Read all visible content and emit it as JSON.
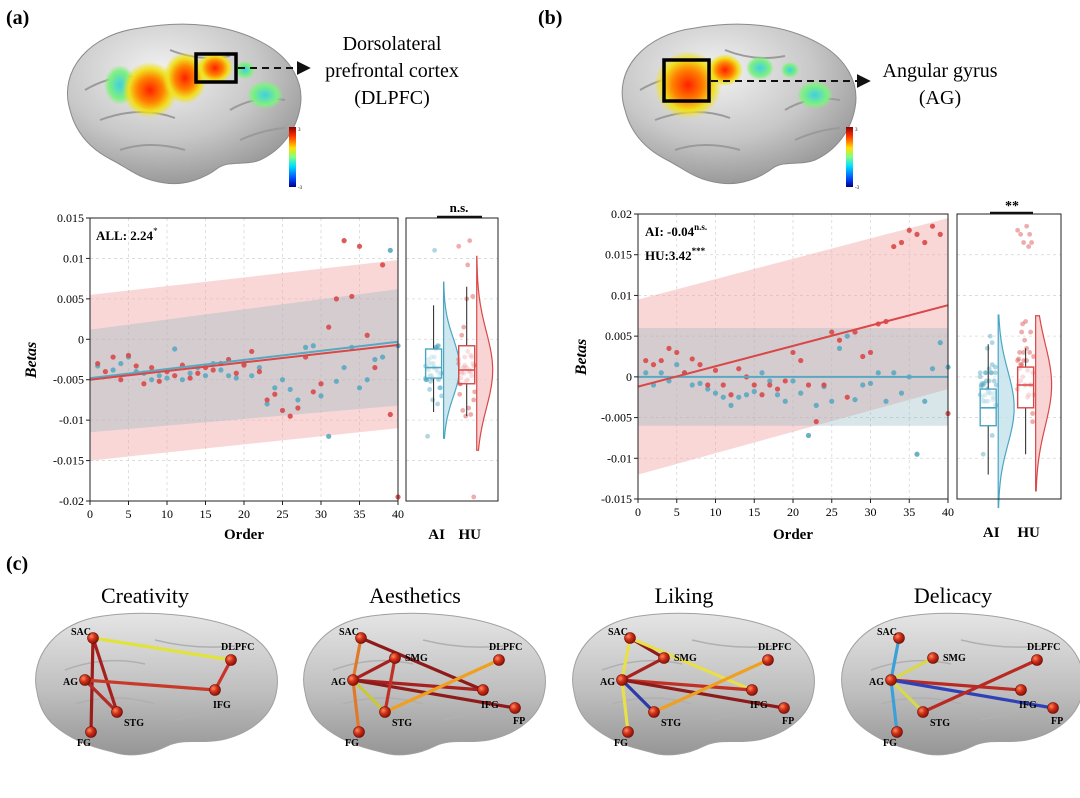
{
  "panels": {
    "a": {
      "label": "(a)",
      "region_line1": "Dorsolateral",
      "region_line2": "prefrontal cortex",
      "region_line3": "(DLPFC)",
      "colorbar_max": "3",
      "colorbar_min": "-3",
      "stat_label": "ALL: 2.24",
      "stat_sup": "*",
      "sig": "n.s."
    },
    "b": {
      "label": "(b)",
      "region_line1": "Angular gyrus",
      "region_line2": "(AG)",
      "colorbar_max": "3",
      "colorbar_min": "-3",
      "stat1_label": "AI: -0.04",
      "stat1_sup": "n.s.",
      "stat2_label": "HU:3.42",
      "stat2_sup": "***",
      "sig": "**"
    },
    "c": {
      "label": "(c)",
      "node_labels": {
        "SAC": "SAC",
        "SMG": "SMG",
        "AG": "AG",
        "STG": "STG",
        "FG": "FG",
        "DLPFC": "DLPFC",
        "IFG": "IFG",
        "FP": "FP"
      },
      "networks": [
        {
          "title": "Creativity",
          "nodes": [
            "SAC",
            "AG",
            "STG",
            "FG",
            "DLPFC",
            "IFG"
          ],
          "edges": [
            {
              "from": "SAC",
              "to": "DLPFC",
              "color": "#e1e33a"
            },
            {
              "from": "SAC",
              "to": "STG",
              "color": "#a8201e"
            },
            {
              "from": "SAC",
              "to": "FG",
              "color": "#9c1c1a"
            },
            {
              "from": "AG",
              "to": "IFG",
              "color": "#c73a2a"
            },
            {
              "from": "AG",
              "to": "STG",
              "color": "#b52a22"
            },
            {
              "from": "DLPFC",
              "to": "IFG",
              "color": "#c8342a"
            }
          ]
        },
        {
          "title": "Aesthetics",
          "nodes": [
            "SAC",
            "SMG",
            "AG",
            "STG",
            "FG",
            "DLPFC",
            "IFG",
            "FP"
          ],
          "edges": [
            {
              "from": "SAC",
              "to": "AG",
              "color": "#e07a2a"
            },
            {
              "from": "SAC",
              "to": "IFG",
              "color": "#8e1a1a"
            },
            {
              "from": "SMG",
              "to": "AG",
              "color": "#a8201e"
            },
            {
              "from": "AG",
              "to": "FG",
              "color": "#e07a2a"
            },
            {
              "from": "AG",
              "to": "STG",
              "color": "#c8c83a"
            },
            {
              "from": "AG",
              "to": "IFG",
              "color": "#a82020"
            },
            {
              "from": "AG",
              "to": "FP",
              "color": "#8e1a1a"
            },
            {
              "from": "STG",
              "to": "DLPFC",
              "color": "#f0a020"
            },
            {
              "from": "SMG",
              "to": "STG",
              "color": "#c03024"
            }
          ]
        },
        {
          "title": "Liking",
          "nodes": [
            "SAC",
            "SMG",
            "AG",
            "STG",
            "FG",
            "DLPFC",
            "IFG",
            "FP"
          ],
          "edges": [
            {
              "from": "SAC",
              "to": "SMG",
              "color": "#8e1a1a"
            },
            {
              "from": "SAC",
              "to": "AG",
              "color": "#e8e04a"
            },
            {
              "from": "SAC",
              "to": "IFG",
              "color": "#e8e04a"
            },
            {
              "from": "SMG",
              "to": "AG",
              "color": "#a82020"
            },
            {
              "from": "AG",
              "to": "FG",
              "color": "#e8e04a"
            },
            {
              "from": "AG",
              "to": "STG",
              "color": "#2a3aa8"
            },
            {
              "from": "AG",
              "to": "IFG",
              "color": "#c03024"
            },
            {
              "from": "AG",
              "to": "FP",
              "color": "#8e1a1a"
            },
            {
              "from": "STG",
              "to": "DLPFC",
              "color": "#f0a020"
            }
          ]
        },
        {
          "title": "Delicacy",
          "nodes": [
            "SAC",
            "SMG",
            "AG",
            "STG",
            "FG",
            "DLPFC",
            "IFG",
            "FP"
          ],
          "edges": [
            {
              "from": "SAC",
              "to": "AG",
              "color": "#3aa0d8"
            },
            {
              "from": "AG",
              "to": "FG",
              "color": "#3aa0d8"
            },
            {
              "from": "AG",
              "to": "SMG",
              "color": "#d8d84a"
            },
            {
              "from": "AG",
              "to": "STG",
              "color": "#d8d84a"
            },
            {
              "from": "AG",
              "to": "IFG",
              "color": "#b82a22"
            },
            {
              "from": "AG",
              "to": "FP",
              "color": "#3040b8"
            },
            {
              "from": "STG",
              "to": "DLPFC",
              "color": "#b82a22"
            }
          ]
        }
      ]
    }
  },
  "chart_data": [
    {
      "type": "scatter",
      "panel": "a",
      "xlabel": "Order",
      "ylabel": "Betas",
      "xlim": [
        0,
        40
      ],
      "ylim": [
        -0.02,
        0.015
      ],
      "xticks": [
        0,
        5,
        10,
        15,
        20,
        25,
        30,
        35,
        40
      ],
      "yticks": [
        -0.02,
        -0.015,
        -0.01,
        -0.005,
        0,
        0.005,
        0.01,
        0.015
      ],
      "ytick_labels": [
        "-0.02",
        "-0.015",
        "-0.01",
        "-0.005",
        "0",
        "0.005",
        "0.01",
        "0.015"
      ],
      "series": [
        {
          "name": "AI",
          "color": "#5aa8c0",
          "x": [
            1,
            3,
            4,
            5,
            6,
            7,
            8,
            9,
            10,
            11,
            12,
            13,
            14,
            15,
            16,
            17,
            18,
            19,
            20,
            21,
            22,
            23,
            24,
            25,
            26,
            27,
            28,
            29,
            30,
            31,
            32,
            33,
            34,
            35,
            36,
            37,
            38,
            39,
            40
          ],
          "y": [
            -0.0033,
            -0.0038,
            -0.003,
            -0.0022,
            -0.004,
            -0.0042,
            -0.005,
            -0.0045,
            -0.0048,
            -0.0012,
            -0.005,
            -0.0042,
            -0.0035,
            -0.0045,
            -0.003,
            -0.0038,
            -0.0045,
            -0.0048,
            -0.003,
            -0.0045,
            -0.0035,
            -0.008,
            -0.006,
            -0.005,
            -0.0062,
            -0.0075,
            -0.001,
            -0.0008,
            -0.007,
            -0.012,
            -0.0052,
            -0.0035,
            -0.001,
            -0.006,
            -0.005,
            -0.0025,
            -0.0022,
            0.011,
            -0.0008
          ]
        },
        {
          "name": "HU",
          "color": "#d94848",
          "x": [
            1,
            2,
            3,
            4,
            5,
            6,
            7,
            8,
            9,
            10,
            11,
            12,
            13,
            14,
            15,
            16,
            17,
            18,
            19,
            20,
            21,
            22,
            23,
            24,
            25,
            26,
            27,
            28,
            29,
            30,
            31,
            32,
            33,
            34,
            35,
            36,
            37,
            38,
            39,
            40
          ],
          "y": [
            -0.003,
            -0.004,
            -0.0022,
            -0.005,
            -0.002,
            -0.0033,
            -0.0055,
            -0.0035,
            -0.0052,
            -0.004,
            -0.0045,
            -0.0032,
            -0.0048,
            -0.0042,
            -0.0035,
            -0.0038,
            -0.003,
            -0.0025,
            -0.0042,
            -0.0032,
            -0.0015,
            -0.004,
            -0.0075,
            -0.0068,
            -0.0088,
            -0.0095,
            -0.0085,
            -0.0022,
            -0.0065,
            -0.0055,
            0.0015,
            0.005,
            0.0122,
            0.0053,
            0.0115,
            0.0005,
            -0.0035,
            0.0092,
            -0.0093,
            -0.0195
          ]
        }
      ],
      "fits": [
        {
          "name": "HU",
          "color": "#d94848",
          "y_at_xmin": -0.005,
          "y_at_xmax": -0.0007,
          "ci_at_xmin": [
            -0.015,
            0.0055
          ],
          "ci_at_xmax": [
            -0.011,
            0.0098
          ]
        },
        {
          "name": "AI",
          "color": "#5aa8c0",
          "y_at_xmin": -0.0048,
          "y_at_xmax": -0.0003,
          "ci_at_xmin": [
            -0.0115,
            0.0012
          ],
          "ci_at_xmax": [
            -0.0082,
            0.0062
          ]
        }
      ],
      "distribution": {
        "categories": [
          "AI",
          "HU"
        ],
        "box": [
          {
            "name": "AI",
            "min": -0.009,
            "q1": -0.0048,
            "median": -0.0035,
            "q3": -0.0012,
            "max": 0.0042
          },
          {
            "name": "HU",
            "min": -0.0095,
            "q1": -0.0055,
            "median": -0.0038,
            "q3": -0.0008,
            "max": 0.0065
          }
        ],
        "significance": "n.s."
      }
    },
    {
      "type": "scatter",
      "panel": "b",
      "xlabel": "Order",
      "ylabel": "Betas",
      "xlim": [
        0,
        40
      ],
      "ylim": [
        -0.015,
        0.02
      ],
      "xticks": [
        0,
        5,
        10,
        15,
        20,
        25,
        30,
        35,
        40
      ],
      "yticks": [
        -0.015,
        -0.01,
        -0.005,
        0,
        0.005,
        0.01,
        0.015,
        0.02
      ],
      "ytick_labels": [
        "-0.015",
        "-0.01",
        "-0.005",
        "0",
        "0.005",
        "0.01",
        "0.015",
        "0.02"
      ],
      "series": [
        {
          "name": "AI",
          "color": "#5aa8c0",
          "x": [
            1,
            2,
            3,
            4,
            5,
            6,
            7,
            8,
            9,
            10,
            11,
            12,
            13,
            14,
            15,
            16,
            17,
            18,
            19,
            20,
            21,
            22,
            23,
            24,
            25,
            26,
            27,
            28,
            29,
            30,
            31,
            32,
            33,
            34,
            35,
            36,
            37,
            38,
            39,
            40
          ],
          "y": [
            0.0005,
            -0.001,
            0.0005,
            -0.0005,
            0.0015,
            0.0005,
            -0.001,
            -0.0008,
            -0.0015,
            -0.002,
            -0.0025,
            -0.0035,
            -0.0025,
            -0.0022,
            -0.0018,
            0.0005,
            -0.0005,
            -0.0022,
            -0.003,
            -0.0005,
            -0.002,
            -0.0072,
            -0.0035,
            -0.0012,
            -0.003,
            0.0035,
            0.005,
            -0.0028,
            -0.001,
            -0.0008,
            0.0005,
            -0.003,
            0.0005,
            -0.002,
            0.0,
            -0.0095,
            -0.003,
            0.001,
            0.0042,
            0.0012
          ]
        },
        {
          "name": "HU",
          "color": "#d94848",
          "x": [
            1,
            2,
            3,
            4,
            5,
            6,
            7,
            8,
            9,
            10,
            11,
            12,
            13,
            14,
            15,
            16,
            17,
            18,
            19,
            20,
            21,
            22,
            23,
            24,
            25,
            26,
            27,
            28,
            29,
            30,
            31,
            32,
            33,
            34,
            35,
            36,
            37,
            38,
            39,
            40
          ],
          "y": [
            0.002,
            0.0015,
            0.002,
            0.0035,
            0.003,
            0.0005,
            0.0022,
            0.0015,
            -0.001,
            0.0008,
            -0.001,
            -0.0022,
            0.001,
            0.0,
            -0.001,
            -0.0022,
            -0.001,
            -0.0015,
            -0.0005,
            0.003,
            0.002,
            -0.001,
            -0.0055,
            -0.001,
            0.0055,
            0.0045,
            -0.0025,
            0.0055,
            0.0025,
            0.003,
            0.0065,
            0.0068,
            0.016,
            0.0165,
            0.018,
            0.0175,
            0.0165,
            0.0185,
            0.0175,
            -0.0045
          ]
        }
      ],
      "fits": [
        {
          "name": "HU",
          "color": "#d94848",
          "y_at_xmin": -0.0012,
          "y_at_xmax": 0.0088,
          "ci_at_xmin": [
            -0.012,
            0.0095
          ],
          "ci_at_xmax": [
            -0.0015,
            0.0195
          ]
        },
        {
          "name": "AI",
          "color": "#5aa8c0",
          "y_at_xmin": 0.0,
          "y_at_xmax": 0.0,
          "ci_at_xmin": [
            -0.006,
            0.006
          ],
          "ci_at_xmax": [
            -0.006,
            0.006
          ]
        }
      ],
      "distribution": {
        "categories": [
          "AI",
          "HU"
        ],
        "box": [
          {
            "name": "AI",
            "min": -0.012,
            "q1": -0.006,
            "median": -0.0038,
            "q3": -0.0015,
            "max": 0.004
          },
          {
            "name": "HU",
            "min": -0.0095,
            "q1": -0.0038,
            "median": -0.001,
            "q3": 0.0012,
            "max": 0.0035
          }
        ],
        "significance": "**"
      }
    }
  ]
}
